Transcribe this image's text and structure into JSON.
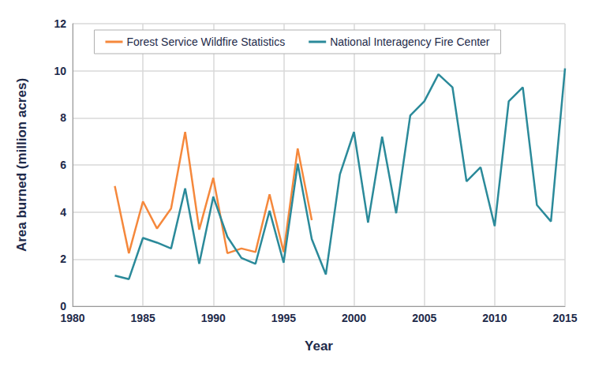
{
  "chart_data": {
    "type": "line",
    "x_label": "Year",
    "y_label": "Area burned (million acres)",
    "x": [
      1983,
      1984,
      1985,
      1986,
      1987,
      1988,
      1989,
      1990,
      1991,
      1992,
      1993,
      1994,
      1995,
      1996,
      1997,
      1998,
      1999,
      2000,
      2001,
      2002,
      2003,
      2004,
      2005,
      2006,
      2007,
      2008,
      2009,
      2010,
      2011,
      2012,
      2013,
      2014,
      2015
    ],
    "series": [
      {
        "name": "Forest Service Wildfire Statistics",
        "color": "#f5883c",
        "values": [
          5.1,
          2.25,
          4.45,
          3.3,
          4.15,
          7.4,
          3.25,
          5.45,
          2.25,
          2.45,
          2.3,
          4.75,
          2.3,
          6.7,
          3.65,
          null,
          null,
          null,
          null,
          null,
          null,
          null,
          null,
          null,
          null,
          null,
          null,
          null,
          null,
          null,
          null,
          null,
          null
        ]
      },
      {
        "name": "National Interagency Fire Center",
        "color": "#2b8a9a",
        "values": [
          1.3,
          1.15,
          2.9,
          2.7,
          2.45,
          5.0,
          1.8,
          4.65,
          2.95,
          2.05,
          1.8,
          4.05,
          1.85,
          6.05,
          2.85,
          1.35,
          5.6,
          7.4,
          3.55,
          7.2,
          3.95,
          8.1,
          8.7,
          9.85,
          9.3,
          5.3,
          5.9,
          3.4,
          8.7,
          9.3,
          4.3,
          3.6,
          10.1
        ]
      }
    ],
    "xlim": [
      1980,
      2015
    ],
    "xticks": [
      1980,
      1985,
      1990,
      1995,
      2000,
      2005,
      2010,
      2015
    ],
    "ylim": [
      0,
      12
    ],
    "yticks": [
      0,
      2,
      4,
      6,
      8,
      10,
      12
    ],
    "grid": true,
    "legend": "top"
  }
}
